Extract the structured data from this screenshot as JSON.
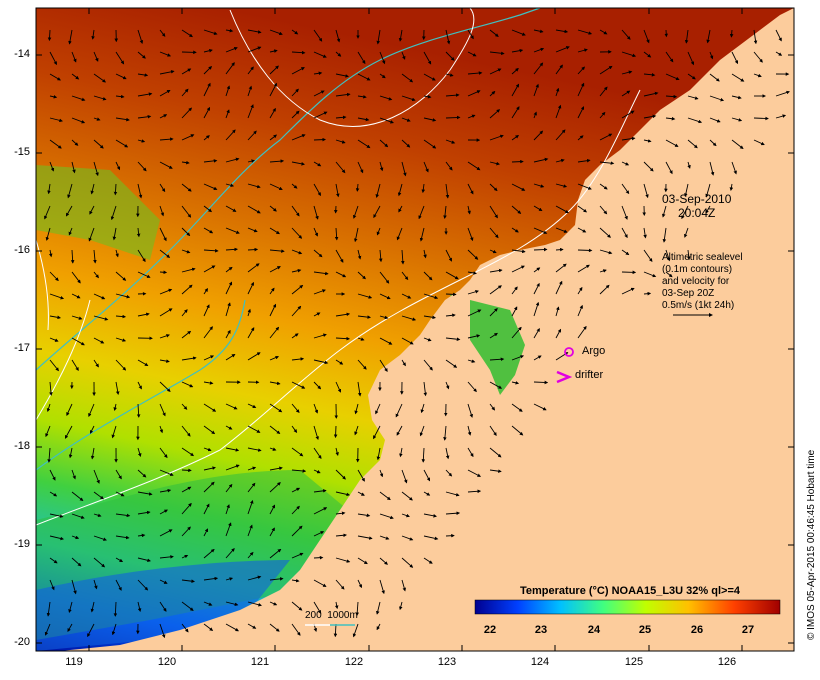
{
  "map": {
    "datetime_date": "03-Sep-2010",
    "datetime_time": "20:04Z",
    "legend_text": [
      "Altimetric sealevel",
      "(0.1m contours)",
      "and velocity for",
      "03-Sep 20Z",
      "0.5m/s (1kt 24h)"
    ],
    "argo_label": "Argo",
    "drifter_label": "drifter",
    "depth_label": "200  1000m",
    "colorbar_title": "Temperature (°C) NOAA15_L3U 32% ql>=4",
    "colorbar_ticks": [
      "22",
      "23",
      "24",
      "25",
      "26",
      "27"
    ],
    "lat_ticks": [
      "-14",
      "-15",
      "-16",
      "-17",
      "-18",
      "-19",
      "-20"
    ],
    "lon_ticks": [
      "119",
      "120",
      "121",
      "122",
      "123",
      "124",
      "125",
      "126"
    ],
    "credit": "© IMOS 05-Apr-2015 00:46:45 Hobart time",
    "colors": {
      "land": "#fccc9c",
      "argo_marker": "#e000e0",
      "isobath_200": "#ffffff",
      "isobath_1000": "#40c0c0",
      "colormap": [
        "#000090",
        "#0040ff",
        "#00c0ff",
        "#40ff80",
        "#c0ff00",
        "#ffc000",
        "#ff4000",
        "#a00000"
      ]
    }
  }
}
